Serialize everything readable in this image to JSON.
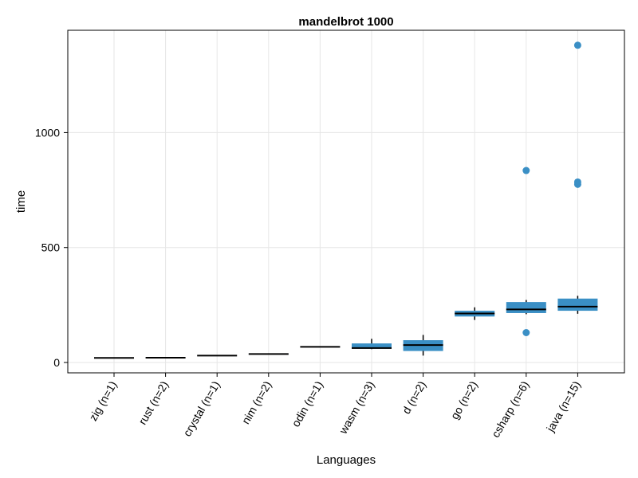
{
  "chart_data": {
    "type": "box",
    "title": "mandelbrot 1000",
    "xlabel": "Languages",
    "ylabel": "time",
    "ylim": [
      -45,
      1445
    ],
    "yticks": [
      0,
      500,
      1000
    ],
    "grid": true,
    "color": "#3a8fc5",
    "median_color": "#000000",
    "categories": [
      "zig (n=1)",
      "rust (n=2)",
      "crystal (n=1)",
      "nim (n=2)",
      "odin (n=1)",
      "wasm (n=3)",
      "d (n=2)",
      "go (n=2)",
      "csharp (n=6)",
      "java (n=15)"
    ],
    "boxes": [
      {
        "q1": 20,
        "median": 20,
        "q3": 20,
        "whisker_low": 20,
        "whisker_high": 20,
        "outliers": []
      },
      {
        "q1": 20,
        "median": 21,
        "q3": 22,
        "whisker_low": 20,
        "whisker_high": 22,
        "outliers": []
      },
      {
        "q1": 30,
        "median": 30,
        "q3": 30,
        "whisker_low": 30,
        "whisker_high": 30,
        "outliers": []
      },
      {
        "q1": 36,
        "median": 37,
        "q3": 38,
        "whisker_low": 35,
        "whisker_high": 40,
        "outliers": []
      },
      {
        "q1": 68,
        "median": 68,
        "q3": 68,
        "whisker_low": 68,
        "whisker_high": 68,
        "outliers": []
      },
      {
        "q1": 60,
        "median": 63,
        "q3": 83,
        "whisker_low": 58,
        "whisker_high": 103,
        "outliers": []
      },
      {
        "q1": 50,
        "median": 76,
        "q3": 97,
        "whisker_low": 30,
        "whisker_high": 120,
        "outliers": []
      },
      {
        "q1": 200,
        "median": 213,
        "q3": 225,
        "whisker_low": 185,
        "whisker_high": 240,
        "outliers": []
      },
      {
        "q1": 215,
        "median": 231,
        "q3": 263,
        "whisker_low": 210,
        "whisker_high": 272,
        "outliers": [
          130,
          835
        ]
      },
      {
        "q1": 225,
        "median": 243,
        "q3": 278,
        "whisker_low": 212,
        "whisker_high": 290,
        "outliers": [
          775,
          785,
          1380
        ]
      }
    ]
  }
}
